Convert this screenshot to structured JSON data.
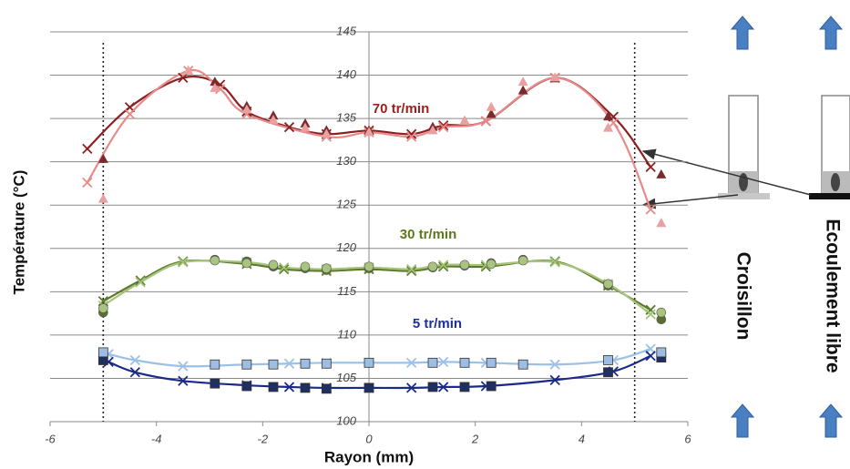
{
  "chart_data": {
    "type": "line",
    "xlabel": "Rayon (mm)",
    "ylabel": "Température (°C)",
    "xlim": [
      -6,
      6
    ],
    "xticks": [
      -6,
      -4,
      -2,
      0,
      2,
      4,
      6
    ],
    "ylim": [
      100,
      145
    ],
    "yticks": [
      100,
      105,
      110,
      115,
      120,
      125,
      130,
      135,
      140,
      145
    ],
    "grid": true,
    "vlines": [
      -5,
      5
    ],
    "annotations": [
      {
        "text": "70 tr/min",
        "color": "#a31d1d"
      },
      {
        "text": "30 tr/min",
        "color": "#5b7a1a"
      },
      {
        "text": "5 tr/min",
        "color": "#1f2f9f"
      }
    ],
    "side_labels": [
      "Croisillon",
      "Ecoulement libre"
    ],
    "series": [
      {
        "color": "#8b2020",
        "marker": "x",
        "line": true,
        "x": [
          -5.3,
          -4.5,
          -3.5,
          -2.8,
          -2.3,
          -1.5,
          -0.8,
          0,
          0.8,
          1.4,
          2.2,
          3.5,
          4.6,
          5.3
        ],
        "values": [
          131.5,
          136.3,
          139.7,
          138.9,
          135.8,
          134,
          133.2,
          133.6,
          133.2,
          134.2,
          134.7,
          139.7,
          135.2,
          129.4
        ]
      },
      {
        "color": "#e88a8a",
        "marker": "x",
        "line": true,
        "x": [
          -5.3,
          -4.5,
          -3.4,
          -2.8,
          -2.3,
          -0.8,
          0,
          0.8,
          1.4,
          2.2,
          3.5,
          4.6,
          5.3
        ],
        "values": [
          127.6,
          135.5,
          140.5,
          138.4,
          135.5,
          132.9,
          133.4,
          132.9,
          134,
          134.7,
          139.7,
          134.5,
          124.5
        ]
      },
      {
        "color": "#7a2a2a",
        "marker": "triangle",
        "line": false,
        "x": [
          -5,
          -2.9,
          -2.3,
          -1.8,
          -1.2,
          -0.8,
          0,
          1.2,
          1.8,
          2.3,
          2.9,
          3.5,
          4.5,
          5.5
        ],
        "values": [
          130.3,
          139.2,
          136.4,
          135.3,
          134.4,
          133.6,
          133.6,
          134,
          134.7,
          135.5,
          138.2,
          139.6,
          135.2,
          128.5
        ]
      },
      {
        "color": "#e8a0a0",
        "marker": "triangle",
        "line": false,
        "x": [
          -5,
          -3.4,
          -2.9,
          -2.3,
          -1.8,
          -1.2,
          -0.8,
          0,
          1.2,
          1.8,
          2.3,
          2.9,
          3.5,
          4.5,
          5.5
        ],
        "values": [
          125.7,
          140.5,
          138.5,
          136,
          134.8,
          133.9,
          133.2,
          133.4,
          133.6,
          134.7,
          136.3,
          139.2,
          139.7,
          133.9,
          122.9
        ]
      },
      {
        "color": "#5a7a2a",
        "marker": "x",
        "line": true,
        "x": [
          -5,
          -4.3,
          -3.5,
          -2.3,
          -1.6,
          -0.8,
          0,
          0.8,
          1.4,
          2.2,
          3.5,
          4.5,
          5.3
        ],
        "values": [
          113.9,
          116.3,
          118.5,
          118.2,
          117.6,
          117.4,
          117.6,
          117.4,
          117.9,
          117.9,
          118.5,
          115.7,
          112.9
        ]
      },
      {
        "color": "#a5c37a",
        "marker": "x",
        "line": true,
        "x": [
          -5,
          -4.3,
          -3.5,
          -2.3,
          -1.6,
          -0.8,
          0,
          0.8,
          1.4,
          2.2,
          3.5,
          4.5,
          5.3
        ],
        "values": [
          113.4,
          116.1,
          118.4,
          118.4,
          117.8,
          117.6,
          117.8,
          117.6,
          118.1,
          118.1,
          118.4,
          115.9,
          112.4
        ]
      },
      {
        "color": "#5a6e30",
        "marker": "circle",
        "line": false,
        "x": [
          -5,
          -2.9,
          -2.3,
          -1.8,
          -1.2,
          -0.8,
          0,
          1.2,
          1.8,
          2.3,
          2.9,
          4.5,
          5.5
        ],
        "values": [
          112.6,
          118.7,
          118.5,
          117.9,
          117.7,
          117.5,
          117.7,
          117.8,
          118,
          118.3,
          118.7,
          115.7,
          111.8
        ]
      },
      {
        "color": "#a9c47e",
        "marker": "circle",
        "line": false,
        "x": [
          -5,
          -2.9,
          -2.3,
          -1.8,
          -1.2,
          -0.8,
          0,
          1.2,
          1.8,
          2.3,
          2.9,
          4.5,
          5.5
        ],
        "values": [
          113.1,
          118.6,
          118.3,
          118.1,
          117.9,
          117.7,
          117.9,
          117.9,
          118.1,
          118.2,
          118.6,
          115.9,
          112.6
        ]
      },
      {
        "color": "#9cc0e8",
        "marker": "x",
        "line": true,
        "x": [
          -4.9,
          -4.4,
          -3.5,
          -2.3,
          -1.5,
          -0.8,
          0,
          0.8,
          1.4,
          2.2,
          3.5,
          4.6,
          5.3
        ],
        "values": [
          107.8,
          107.1,
          106.4,
          106.6,
          106.7,
          106.8,
          106.8,
          106.8,
          106.9,
          106.8,
          106.6,
          107.1,
          108.4
        ]
      },
      {
        "color": "#1a2a8a",
        "marker": "x",
        "line": true,
        "x": [
          -4.9,
          -4.4,
          -3.5,
          -2.3,
          -1.5,
          -0.8,
          0,
          0.8,
          1.4,
          2.2,
          3.5,
          4.6,
          5.3
        ],
        "values": [
          106.9,
          105.7,
          104.7,
          104.2,
          104,
          103.9,
          103.9,
          103.9,
          104,
          104.1,
          104.8,
          105.8,
          107.6
        ]
      },
      {
        "color": "#1f3060",
        "marker": "square",
        "line": false,
        "x": [
          -5,
          -2.9,
          -2.3,
          -1.8,
          -1.2,
          -0.8,
          0,
          1.2,
          1.8,
          2.3,
          4.5,
          5.5
        ],
        "values": [
          107.1,
          104.4,
          104.1,
          104,
          103.9,
          103.8,
          103.9,
          104,
          104,
          104.1,
          105.7,
          107.4
        ]
      },
      {
        "color": "#9dbde2",
        "marker": "square",
        "line": false,
        "x": [
          -5,
          -2.9,
          -2.3,
          -1.8,
          -1.2,
          -0.8,
          0,
          1.2,
          1.8,
          2.3,
          2.9,
          4.5,
          5.5
        ],
        "values": [
          108,
          106.6,
          106.6,
          106.6,
          106.7,
          106.7,
          106.8,
          106.8,
          106.8,
          106.8,
          106.6,
          107.1,
          108
        ]
      }
    ]
  }
}
